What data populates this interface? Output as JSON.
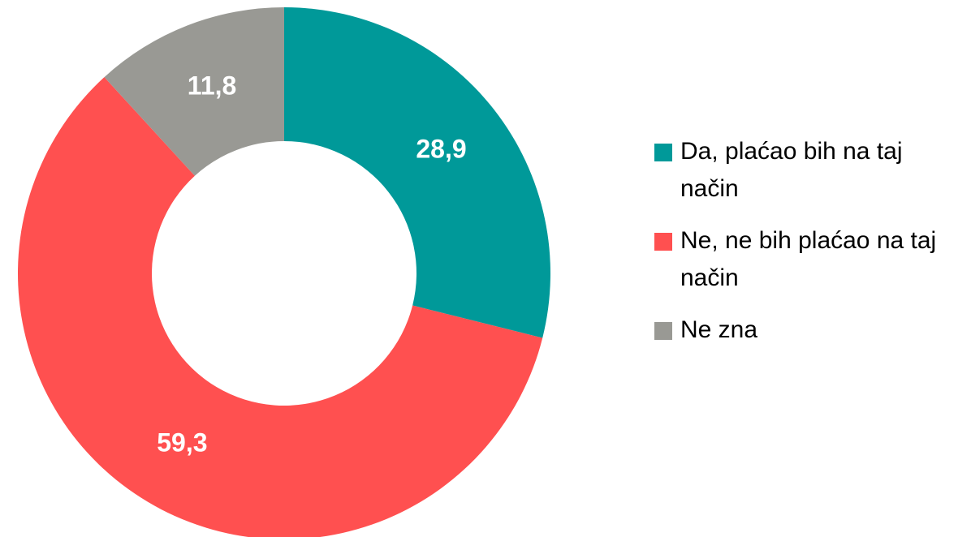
{
  "chart_data": {
    "type": "donut",
    "categories": [
      "Da, plaćao bih na taj način",
      "Ne, ne bih plaćao na taj način",
      "Ne zna"
    ],
    "values": [
      28.9,
      59.3,
      11.8
    ],
    "value_labels": [
      "28,9",
      "59,3",
      "11,8"
    ],
    "colors": [
      "#009999",
      "#ff5050",
      "#999994"
    ],
    "legend": "right"
  }
}
